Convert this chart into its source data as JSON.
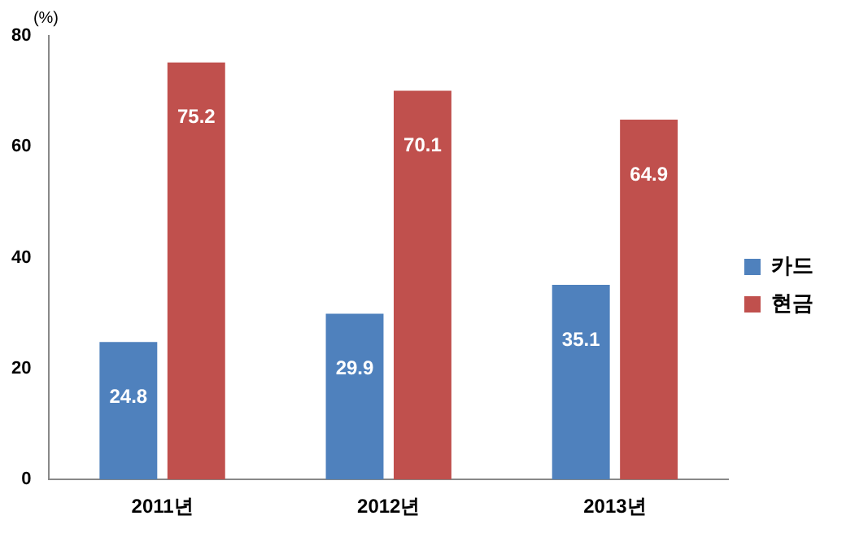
{
  "chart_data": {
    "type": "bar",
    "ylabel": "(%)",
    "categories": [
      "2011년",
      "2012년",
      "2013년"
    ],
    "series": [
      {
        "name": "카드",
        "color": "#4f81bd",
        "values": [
          24.8,
          29.9,
          35.1
        ]
      },
      {
        "name": "현금",
        "color": "#c0504d",
        "values": [
          75.2,
          70.1,
          64.9
        ]
      }
    ],
    "ylim": [
      0,
      80
    ],
    "yticks": [
      0,
      20,
      40,
      60,
      80
    ],
    "grid": false,
    "legend": "right",
    "data_labels": true
  }
}
